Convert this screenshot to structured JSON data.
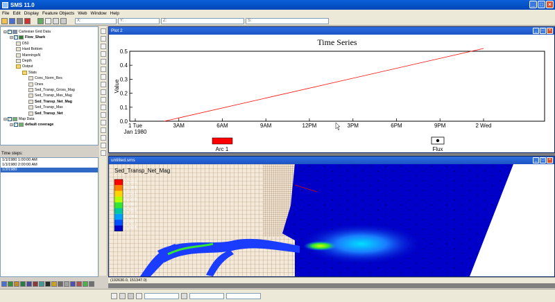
{
  "app": {
    "title": "SMS 11.0"
  },
  "menu": [
    "File",
    "Edit",
    "Display",
    "Feature Objects",
    "Web",
    "Window",
    "Help"
  ],
  "toolbar": {
    "coord_labels": [
      "X:",
      "Y:",
      "Z:",
      "S:"
    ]
  },
  "tree": [
    {
      "label": "Cartesian Grid Data",
      "indent": 0,
      "icon": "grid",
      "checked": true,
      "bold": false
    },
    {
      "label": "Flow_Shark",
      "indent": 1,
      "icon": "flow",
      "checked": true,
      "bold": true
    },
    {
      "label": "D50",
      "indent": 2,
      "icon": "dataset",
      "checked": false,
      "bold": false
    },
    {
      "label": "Hard Bottom",
      "indent": 2,
      "icon": "dataset",
      "checked": false,
      "bold": false
    },
    {
      "label": "ManningsN",
      "indent": 2,
      "icon": "dataset",
      "checked": false,
      "bold": false
    },
    {
      "label": "Depth",
      "indent": 2,
      "icon": "dataset",
      "checked": false,
      "bold": false
    },
    {
      "label": "Output",
      "indent": 2,
      "icon": "folder",
      "checked": false,
      "bold": false
    },
    {
      "label": "Stats",
      "indent": 3,
      "icon": "folder",
      "checked": false,
      "bold": false
    },
    {
      "label": "Conc_Norm_Res",
      "indent": 4,
      "icon": "dataset",
      "checked": false,
      "bold": false
    },
    {
      "label": "Ones",
      "indent": 4,
      "icon": "dataset",
      "checked": false,
      "bold": false
    },
    {
      "label": "Sed_Transp_Gross_Mag",
      "indent": 4,
      "icon": "dataset",
      "checked": false,
      "bold": false
    },
    {
      "label": "Sed_Transp_Max_Mag",
      "indent": 4,
      "icon": "dataset",
      "checked": false,
      "bold": false
    },
    {
      "label": "Sed_Transp_Net_Mag",
      "indent": 4,
      "icon": "dataset",
      "checked": false,
      "bold": true
    },
    {
      "label": "Sed_Transp_Max",
      "indent": 4,
      "icon": "dataset",
      "checked": false,
      "bold": false
    },
    {
      "label": "Sed_Transp_Net",
      "indent": 4,
      "icon": "dataset",
      "checked": false,
      "bold": true
    },
    {
      "label": "Map Data",
      "indent": 0,
      "icon": "map",
      "checked": true,
      "bold": false
    },
    {
      "label": "default coverage",
      "indent": 1,
      "icon": "map",
      "checked": true,
      "bold": true
    }
  ],
  "time_steps": {
    "label": "Time steps:",
    "items": [
      "1/1/1980 1:00:00 AM",
      "1/1/1980 2:00:00 AM",
      "1/2/1980"
    ],
    "selected_index": 2
  },
  "plot": {
    "window_title": "Plot 2",
    "chart_data": {
      "type": "line",
      "title": "Time Series",
      "ylabel": "Value",
      "xlabel": "",
      "ylim": [
        0,
        0.5
      ],
      "yticks": [
        "0.0",
        "0.1",
        "0.2",
        "0.3",
        "0.4",
        "0.5"
      ],
      "xticks": [
        "1 Tue",
        "3AM",
        "6AM",
        "9AM",
        "12PM",
        "3PM",
        "6PM",
        "9PM",
        "2 Wed"
      ],
      "xtick_sub": "Jan 1980",
      "series": [
        {
          "name": "Arc 1",
          "color": "#ff0000",
          "x": [
            "1 Tue 2:00",
            "2 Wed 0:00"
          ],
          "y": [
            0.0,
            0.52
          ]
        }
      ],
      "legend": [
        {
          "name": "Arc 1",
          "kind": "swatch",
          "color": "#ff0000"
        },
        {
          "name": "Flux",
          "kind": "marker",
          "color": "#000000"
        }
      ]
    }
  },
  "map": {
    "window_title": "untitled.sms",
    "legend_title": "Sed_Transp_Net_Mag",
    "legend_values": [
      "0.189",
      "0.165",
      "0.141",
      "0.116",
      "0.092",
      "0.068",
      "0.043",
      "0.027",
      "0.006"
    ],
    "legend_colors": [
      "#ff0000",
      "#ff7f00",
      "#ffd400",
      "#b4ff00",
      "#32e632",
      "#00c8a0",
      "#00a0ff",
      "#0050ff",
      "#0000c8"
    ]
  },
  "status": {
    "coords": "(192630.0, 151347.0)"
  }
}
